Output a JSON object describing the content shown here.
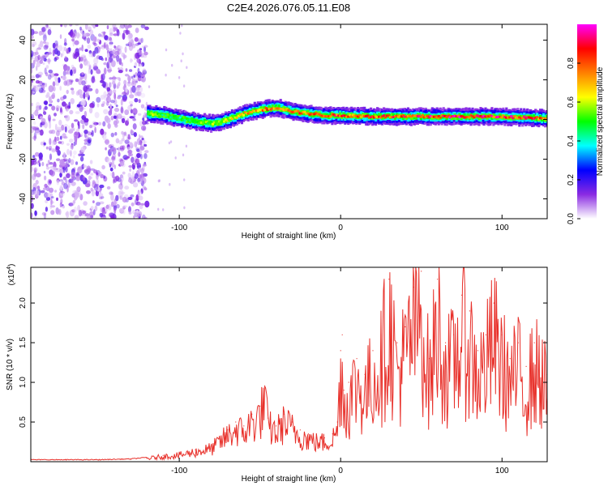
{
  "chart_data": [
    {
      "type": "heatmap",
      "title": "C2E4.2026.076.05.11.E08",
      "xlabel": "Height of straight line (km)",
      "ylabel": "Frequency (Hz)",
      "xlim": [
        -192,
        128
      ],
      "ylim": [
        -50,
        48
      ],
      "x_ticks": [
        -100,
        0,
        100
      ],
      "x_tick_labels": [
        "-100",
        "0",
        "100"
      ],
      "y_ticks": [
        -40,
        -20,
        0,
        20,
        40
      ],
      "y_tick_labels": [
        "-40",
        "-20",
        "0",
        "20",
        "40"
      ],
      "noise_region": {
        "x_from": -192,
        "x_to": -120,
        "description_free": true
      },
      "ridge": {
        "x": [
          -120,
          -110,
          -100,
          -90,
          -80,
          -70,
          -60,
          -50,
          -45,
          -40,
          -35,
          -30,
          -20,
          -10,
          0,
          20,
          40,
          60,
          80,
          100,
          128
        ],
        "frequency": [
          3,
          2,
          0.5,
          -1,
          -2,
          0,
          3,
          5,
          5.5,
          6,
          5,
          4,
          3,
          2,
          2,
          1.5,
          1.5,
          1.5,
          1.5,
          1.5,
          0.5
        ],
        "peak_amplitude": [
          0.6,
          0.55,
          0.5,
          0.55,
          0.6,
          0.65,
          0.75,
          0.8,
          0.85,
          0.8,
          0.8,
          0.85,
          0.85,
          0.9,
          0.9,
          0.9,
          0.95,
          0.95,
          0.95,
          0.95,
          0.9
        ]
      },
      "colorbar": {
        "label": "Normalized spectral amplitude",
        "range": [
          0,
          1
        ],
        "ticks": [
          0.0,
          0.2,
          0.4,
          0.6,
          0.8
        ],
        "tick_labels": [
          "0.0",
          "0.2",
          "0.4",
          "0.6",
          "0.8"
        ],
        "colors": [
          "#ffffff",
          "#8a2be2",
          "#0000ff",
          "#00ffff",
          "#00ff00",
          "#ffff00",
          "#ff8000",
          "#ff0000",
          "#ff00ff"
        ]
      }
    },
    {
      "type": "line",
      "xlabel": "Height of straight line (km)",
      "ylabel": "SNR (10 * v/v)",
      "y_multiplier_base": "(x10",
      "y_multiplier_exp": "4",
      "y_multiplier_close": ")",
      "xlim": [
        -192,
        128
      ],
      "ylim": [
        0,
        2.45
      ],
      "x_ticks": [
        -100,
        0,
        100
      ],
      "x_tick_labels": [
        "-100",
        "0",
        "100"
      ],
      "y_ticks": [
        0.5,
        1.0,
        1.5,
        2.0
      ],
      "y_tick_labels": [
        "0.5",
        "1.0",
        "1.5",
        "2.0"
      ],
      "series": [
        {
          "name": "SNR",
          "color": "#e8302a",
          "x": [
            -192,
            -170,
            -150,
            -130,
            -120,
            -110,
            -100,
            -90,
            -80,
            -75,
            -70,
            -65,
            -60,
            -55,
            -50,
            -47,
            -45,
            -40,
            -35,
            -30,
            -25,
            -20,
            -15,
            -10,
            -5,
            -2,
            0,
            1,
            2,
            5,
            10,
            15,
            20,
            25,
            30,
            35,
            40,
            45,
            50,
            55,
            60,
            65,
            70,
            75,
            80,
            85,
            90,
            95,
            100,
            105,
            110,
            115,
            120,
            125,
            128
          ],
          "values": [
            0.02,
            0.02,
            0.02,
            0.03,
            0.05,
            0.08,
            0.1,
            0.15,
            0.2,
            0.3,
            0.4,
            0.5,
            0.45,
            0.6,
            0.7,
            0.95,
            0.55,
            0.45,
            0.6,
            0.5,
            0.4,
            0.35,
            0.3,
            0.3,
            0.35,
            0.5,
            1.4,
            1.6,
            0.9,
            1.0,
            1.3,
            1.1,
            1.4,
            1.6,
            2.3,
            1.5,
            1.7,
            2.2,
            2.4,
            1.3,
            2.3,
            1.5,
            1.6,
            2.1,
            1.9,
            1.4,
            1.6,
            2.0,
            1.6,
            1.3,
            1.5,
            1.2,
            1.5,
            1.4,
            1.1
          ]
        }
      ]
    }
  ]
}
